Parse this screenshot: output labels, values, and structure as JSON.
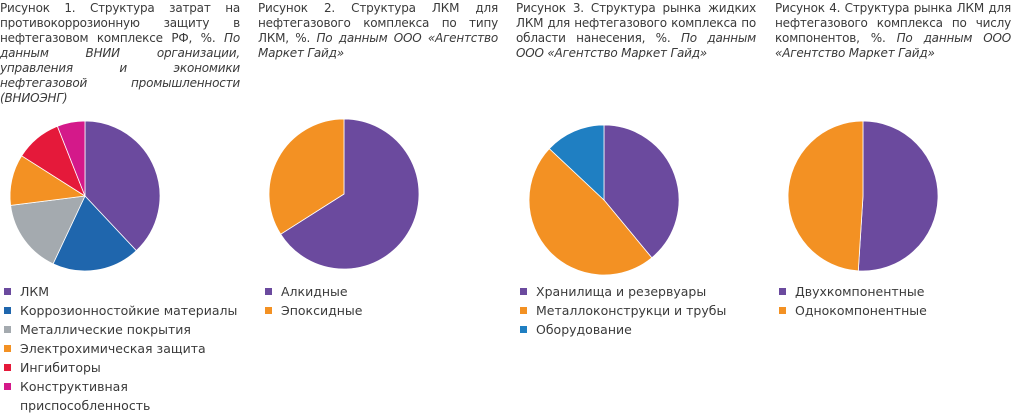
{
  "figures": [
    {
      "caption": "Рисунок 1. Структура затрат на противокоррозионную защиту в нефтегазовом комплексе РФ, %.",
      "source": "По данным ВНИИ организации, управления и экономики нефтегазовой промышленности (ВНИОЭНГ)",
      "chart_data": {
        "type": "pie",
        "categories": [
          "ЛКМ",
          "Коррозионностойкие материалы",
          "Металлические покрытия",
          "Электрохимическая защита",
          "Ингибиторы",
          "Конструктивная приспособленность"
        ],
        "values": [
          38,
          19,
          16,
          11,
          10,
          6
        ],
        "colors": [
          "#6b4a9e",
          "#1f66ad",
          "#a4aaaf",
          "#f39123",
          "#e5193a",
          "#d4198a"
        ]
      }
    },
    {
      "caption": "Рисунок 2. Структура ЛКМ для нефтегазового комплекса по типу ЛКМ, %.",
      "source": "По данным ООО «Агентство Маркет Гайд»",
      "chart_data": {
        "type": "pie",
        "categories": [
          "Алкидные",
          "Эпоксидные"
        ],
        "values": [
          66,
          34
        ],
        "colors": [
          "#6b4a9e",
          "#f39123"
        ]
      }
    },
    {
      "caption": "Рисунок 3. Структура рынка жидких ЛКМ для нефтегазового комплекса по области нанесения, %.",
      "source": "По данным ООО «Агентство Маркет Гайд»",
      "chart_data": {
        "type": "pie",
        "categories": [
          "Хранилища и резервуары",
          "Металлоконструкци и трубы",
          "Оборудование"
        ],
        "values": [
          39,
          48,
          13
        ],
        "colors": [
          "#6b4a9e",
          "#f39123",
          "#1f7fc2"
        ]
      }
    },
    {
      "caption": "Рисунок 4. Структура рынка ЛКМ для нефтегазового комплекса по числу компонентов, %.",
      "source": "По данным ООО «Агентство Маркет Гайд»",
      "chart_data": {
        "type": "pie",
        "categories": [
          "Двухкомпонентные",
          "Однокомпонентные"
        ],
        "values": [
          51,
          49
        ],
        "colors": [
          "#6b4a9e",
          "#f39123"
        ]
      }
    }
  ]
}
